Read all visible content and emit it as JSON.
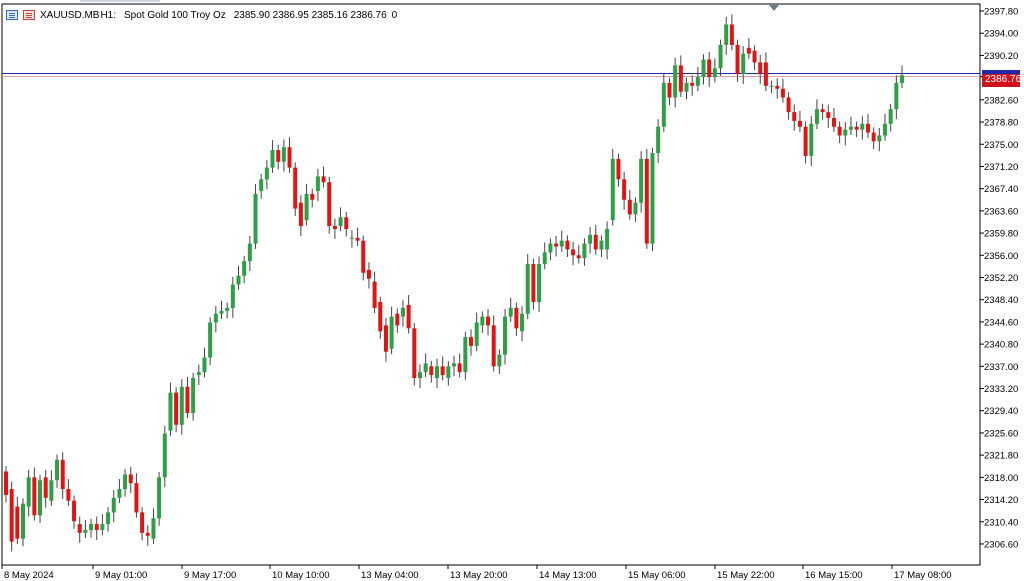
{
  "window": {
    "symbol": "XAUUSD.MB",
    "timeframe": "H1:",
    "description": "Spot Gold 100 Troy Oz",
    "ohlc": "2385.90 2386.95 2385.16 2386.76",
    "volume": "0",
    "last_price": "2386.76"
  },
  "colors": {
    "bull": "#2e9e47",
    "bear": "#e01414",
    "grid_axis": "#000000",
    "price_line": "#1f2aa8",
    "price_tag": "#d3111c"
  },
  "chart_data": {
    "type": "candlestick",
    "title": "",
    "ylim": [
      2303.0,
      2399.0
    ],
    "y_ticks": [
      "2397.80",
      "2394.00",
      "2390.20",
      "2386.60",
      "2382.60",
      "2378.80",
      "2375.00",
      "2371.20",
      "2367.40",
      "2363.60",
      "2359.80",
      "2356.00",
      "2352.20",
      "2348.40",
      "2344.60",
      "2340.80",
      "2337.00",
      "2333.20",
      "2329.40",
      "2325.60",
      "2321.80",
      "2318.00",
      "2314.20",
      "2310.40",
      "2306.60"
    ],
    "x_labels": [
      "8 May 2024",
      "9 May 01:00",
      "9 May 17:00",
      "10 May 10:00",
      "13 May 04:00",
      "13 May 20:00",
      "14 May 13:00",
      "15 May 06:00",
      "15 May 22:00",
      "16 May 15:00",
      "17 May 08:00"
    ],
    "candles": [
      {
        "o": 2319.0,
        "c": 2315.0
      },
      {
        "o": 2316.0,
        "c": 2307.0
      },
      {
        "o": 2313.0,
        "c": 2307.5
      },
      {
        "o": 2307.5,
        "c": 2313.5
      },
      {
        "o": 2313.0,
        "c": 2318.0
      },
      {
        "o": 2318.0,
        "c": 2311.5
      },
      {
        "o": 2311.5,
        "c": 2317.5
      },
      {
        "o": 2318.0,
        "c": 2314.5
      },
      {
        "o": 2314.0,
        "c": 2317.5
      },
      {
        "o": 2317.5,
        "c": 2321.0
      },
      {
        "o": 2321.0,
        "c": 2316.0
      },
      {
        "o": 2316.0,
        "c": 2314.0
      },
      {
        "o": 2314.0,
        "c": 2310.5
      },
      {
        "o": 2310.0,
        "c": 2308.5
      },
      {
        "o": 2308.5,
        "c": 2309.0
      },
      {
        "o": 2309.0,
        "c": 2310.0
      },
      {
        "o": 2310.0,
        "c": 2309.0
      },
      {
        "o": 2309.0,
        "c": 2310.0
      },
      {
        "o": 2310.0,
        "c": 2312.0
      },
      {
        "o": 2312.0,
        "c": 2314.5
      },
      {
        "o": 2314.5,
        "c": 2316.0
      },
      {
        "o": 2316.0,
        "c": 2318.5
      },
      {
        "o": 2318.5,
        "c": 2317.0
      },
      {
        "o": 2317.0,
        "c": 2312.0
      },
      {
        "o": 2312.0,
        "c": 2308.5
      },
      {
        "o": 2308.5,
        "c": 2308.0
      },
      {
        "o": 2307.5,
        "c": 2311.0
      },
      {
        "o": 2311.0,
        "c": 2318.0
      },
      {
        "o": 2318.0,
        "c": 2325.5
      },
      {
        "o": 2326.0,
        "c": 2332.5
      },
      {
        "o": 2332.5,
        "c": 2327.0
      },
      {
        "o": 2327.0,
        "c": 2333.5
      },
      {
        "o": 2333.5,
        "c": 2329.0
      },
      {
        "o": 2329.0,
        "c": 2335.0
      },
      {
        "o": 2335.5,
        "c": 2336.0
      },
      {
        "o": 2336.0,
        "c": 2338.5
      },
      {
        "o": 2338.5,
        "c": 2344.5
      },
      {
        "o": 2344.5,
        "c": 2346.0
      },
      {
        "o": 2346.0,
        "c": 2346.5
      },
      {
        "o": 2346.5,
        "c": 2347.0
      },
      {
        "o": 2347.0,
        "c": 2351.0
      },
      {
        "o": 2351.0,
        "c": 2352.5
      },
      {
        "o": 2352.5,
        "c": 2355.0
      },
      {
        "o": 2355.0,
        "c": 2358.0
      },
      {
        "o": 2358.0,
        "c": 2366.5
      },
      {
        "o": 2367.0,
        "c": 2369.0
      },
      {
        "o": 2369.0,
        "c": 2371.0
      },
      {
        "o": 2371.0,
        "c": 2374.0
      },
      {
        "o": 2374.0,
        "c": 2372.0
      },
      {
        "o": 2372.0,
        "c": 2374.5
      },
      {
        "o": 2374.5,
        "c": 2371.0
      },
      {
        "o": 2371.0,
        "c": 2364.0
      },
      {
        "o": 2365.0,
        "c": 2361.0
      },
      {
        "o": 2362.0,
        "c": 2366.5
      },
      {
        "o": 2366.5,
        "c": 2365.5
      },
      {
        "o": 2367.0,
        "c": 2369.5
      },
      {
        "o": 2369.5,
        "c": 2368.5
      },
      {
        "o": 2368.5,
        "c": 2361.0
      },
      {
        "o": 2361.0,
        "c": 2360.5
      },
      {
        "o": 2361.0,
        "c": 2362.5
      },
      {
        "o": 2362.5,
        "c": 2360.5
      },
      {
        "o": 2359.0,
        "c": 2359.0
      },
      {
        "o": 2359.0,
        "c": 2358.5
      },
      {
        "o": 2358.5,
        "c": 2353.0
      },
      {
        "o": 2353.5,
        "c": 2352.0
      },
      {
        "o": 2351.5,
        "c": 2347.0
      },
      {
        "o": 2348.0,
        "c": 2343.0
      },
      {
        "o": 2344.0,
        "c": 2339.5
      },
      {
        "o": 2340.0,
        "c": 2345.5
      },
      {
        "o": 2346.0,
        "c": 2344.0
      },
      {
        "o": 2345.5,
        "c": 2347.0
      },
      {
        "o": 2347.5,
        "c": 2343.5
      },
      {
        "o": 2343.5,
        "c": 2335.0
      },
      {
        "o": 2335.0,
        "c": 2336.0
      },
      {
        "o": 2336.0,
        "c": 2337.5
      },
      {
        "o": 2337.0,
        "c": 2335.5
      },
      {
        "o": 2335.0,
        "c": 2337.0
      },
      {
        "o": 2337.0,
        "c": 2335.5
      },
      {
        "o": 2335.0,
        "c": 2337.0
      },
      {
        "o": 2337.0,
        "c": 2337.5
      },
      {
        "o": 2337.5,
        "c": 2336.0
      },
      {
        "o": 2336.0,
        "c": 2342.0
      },
      {
        "o": 2342.0,
        "c": 2340.5
      },
      {
        "o": 2340.5,
        "c": 2344.5
      },
      {
        "o": 2344.0,
        "c": 2345.5
      },
      {
        "o": 2345.5,
        "c": 2344.0
      },
      {
        "o": 2344.0,
        "c": 2337.0
      },
      {
        "o": 2337.0,
        "c": 2339.0
      },
      {
        "o": 2339.0,
        "c": 2345.5
      },
      {
        "o": 2345.5,
        "c": 2347.0
      },
      {
        "o": 2347.0,
        "c": 2343.5
      },
      {
        "o": 2343.0,
        "c": 2346.0
      },
      {
        "o": 2346.0,
        "c": 2354.5
      },
      {
        "o": 2354.5,
        "c": 2348.0
      },
      {
        "o": 2348.0,
        "c": 2354.5
      },
      {
        "o": 2354.5,
        "c": 2356.5
      },
      {
        "o": 2356.5,
        "c": 2358.0
      },
      {
        "o": 2358.0,
        "c": 2357.5
      },
      {
        "o": 2357.5,
        "c": 2358.5
      },
      {
        "o": 2358.5,
        "c": 2357.0
      },
      {
        "o": 2357.0,
        "c": 2356.0
      },
      {
        "o": 2356.0,
        "c": 2355.5
      },
      {
        "o": 2355.5,
        "c": 2358.0
      },
      {
        "o": 2358.0,
        "c": 2359.5
      },
      {
        "o": 2359.5,
        "c": 2357.0
      },
      {
        "o": 2357.0,
        "c": 2358.5
      },
      {
        "o": 2357.0,
        "c": 2360.5
      },
      {
        "o": 2362.0,
        "c": 2372.5
      },
      {
        "o": 2372.5,
        "c": 2369.0
      },
      {
        "o": 2369.0,
        "c": 2365.5
      },
      {
        "o": 2365.5,
        "c": 2363.0
      },
      {
        "o": 2363.0,
        "c": 2365.0
      },
      {
        "o": 2365.0,
        "c": 2372.5
      },
      {
        "o": 2372.5,
        "c": 2358.0
      },
      {
        "o": 2358.0,
        "c": 2373.5
      },
      {
        "o": 2373.5,
        "c": 2378.0
      },
      {
        "o": 2378.0,
        "c": 2385.5
      },
      {
        "o": 2385.5,
        "c": 2383.0
      },
      {
        "o": 2383.0,
        "c": 2388.5
      },
      {
        "o": 2388.5,
        "c": 2384.0
      },
      {
        "o": 2384.0,
        "c": 2385.5
      },
      {
        "o": 2385.5,
        "c": 2385.0
      },
      {
        "o": 2385.0,
        "c": 2386.5
      },
      {
        "o": 2386.5,
        "c": 2389.5
      },
      {
        "o": 2389.5,
        "c": 2386.5
      },
      {
        "o": 2386.5,
        "c": 2388.0
      },
      {
        "o": 2388.0,
        "c": 2392.0
      },
      {
        "o": 2392.0,
        "c": 2395.5
      },
      {
        "o": 2395.5,
        "c": 2392.0
      },
      {
        "o": 2392.0,
        "c": 2387.0
      },
      {
        "o": 2387.0,
        "c": 2390.5
      },
      {
        "o": 2391.5,
        "c": 2390.5
      },
      {
        "o": 2391.0,
        "c": 2389.0
      },
      {
        "o": 2389.0,
        "c": 2387.0
      },
      {
        "o": 2389.0,
        "c": 2385.0
      },
      {
        "o": 2385.0,
        "c": 2385.0
      },
      {
        "o": 2385.0,
        "c": 2384.5
      },
      {
        "o": 2384.5,
        "c": 2383.0
      },
      {
        "o": 2383.0,
        "c": 2380.5
      },
      {
        "o": 2380.5,
        "c": 2379.0
      },
      {
        "o": 2379.0,
        "c": 2378.0
      },
      {
        "o": 2378.0,
        "c": 2373.0
      },
      {
        "o": 2373.0,
        "c": 2378.5
      },
      {
        "o": 2378.5,
        "c": 2381.0
      },
      {
        "o": 2381.0,
        "c": 2380.5
      },
      {
        "o": 2380.5,
        "c": 2379.5
      },
      {
        "o": 2379.5,
        "c": 2378.0
      },
      {
        "o": 2378.0,
        "c": 2376.5
      },
      {
        "o": 2376.5,
        "c": 2377.5
      },
      {
        "o": 2377.5,
        "c": 2378.0
      },
      {
        "o": 2378.0,
        "c": 2377.5
      },
      {
        "o": 2377.5,
        "c": 2378.5
      },
      {
        "o": 2378.5,
        "c": 2377.0
      },
      {
        "o": 2377.0,
        "c": 2375.5
      },
      {
        "o": 2375.5,
        "c": 2376.5
      },
      {
        "o": 2376.5,
        "c": 2378.5
      },
      {
        "o": 2378.5,
        "c": 2381.0
      },
      {
        "o": 2381.0,
        "c": 2385.5
      },
      {
        "o": 2385.5,
        "c": 2386.8
      }
    ]
  }
}
